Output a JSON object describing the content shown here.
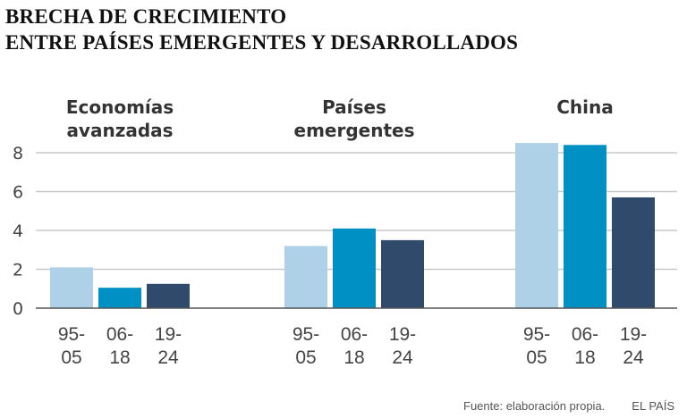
{
  "title_lines": [
    "BRECHA DE CRECIMIENTO",
    "ENTRE PAÍSES EMERGENTES Y DESARROLLADOS"
  ],
  "footer": {
    "source": "Fuente: elaboración propia.",
    "brand": "EL PAÍS"
  },
  "colors": {
    "p1": "#afd1e8",
    "p2": "#0090c4",
    "p3": "#2f4a6b",
    "grid": "#c8c8c8",
    "axis": "#555555"
  },
  "chart_data": {
    "type": "bar",
    "title": "BRECHA DE CRECIMIENTO ENTRE PAÍSES EMERGENTES Y DESARROLLADOS",
    "xlabel": "",
    "ylabel": "",
    "ylim": [
      0,
      8.5
    ],
    "yticks": [
      0,
      2,
      4,
      6,
      8
    ],
    "grid": true,
    "legend": "none",
    "periods": [
      [
        "95-",
        "05"
      ],
      [
        "06-",
        "18"
      ],
      [
        "19-",
        "24"
      ]
    ],
    "groups": [
      {
        "name_lines": [
          "Economías",
          "avanzadas"
        ],
        "values": [
          2.1,
          1.05,
          1.25
        ]
      },
      {
        "name_lines": [
          "Países",
          "emergentes"
        ],
        "values": [
          3.2,
          4.1,
          3.5
        ]
      },
      {
        "name_lines": [
          "China"
        ],
        "values": [
          8.5,
          8.4,
          5.7
        ]
      }
    ]
  }
}
